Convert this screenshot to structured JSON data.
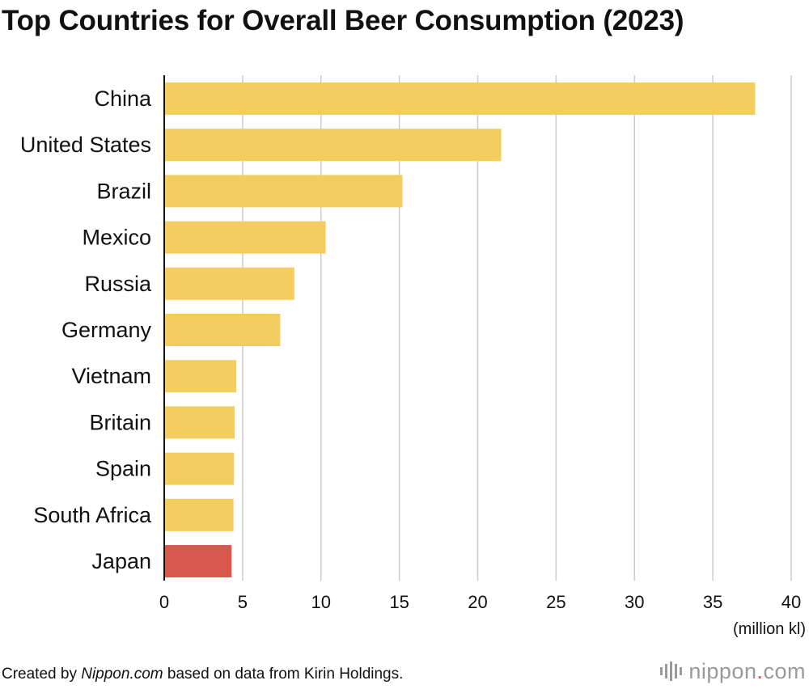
{
  "title": "Top Countries for Overall Beer Consumption (2023)",
  "chart_data": {
    "type": "bar",
    "orientation": "horizontal",
    "title": "Top Countries for Overall Beer Consumption (2023)",
    "categories": [
      "China",
      "United States",
      "Brazil",
      "Mexico",
      "Russia",
      "Germany",
      "Vietnam",
      "Britain",
      "Spain",
      "South Africa",
      "Japan"
    ],
    "values": [
      37.7,
      21.5,
      15.2,
      10.3,
      8.3,
      7.4,
      4.6,
      4.5,
      4.45,
      4.42,
      4.3
    ],
    "highlight": "Japan",
    "xlabel": "(million kl)",
    "ylabel": "",
    "xlim": [
      0,
      40
    ],
    "xticks": [
      0,
      5,
      10,
      15,
      20,
      25,
      30,
      35,
      40
    ],
    "grid": true,
    "colors": {
      "bar": "#f4cd5f",
      "highlight": "#d9584d",
      "grid": "#cccccc",
      "axis": "#111111"
    }
  },
  "footer": {
    "prefix": "Created by ",
    "source": "Nippon.com",
    "suffix": " based on data from Kirin Holdings."
  },
  "logo": {
    "name": "nippon",
    "dot": ".",
    "tld": "com"
  }
}
